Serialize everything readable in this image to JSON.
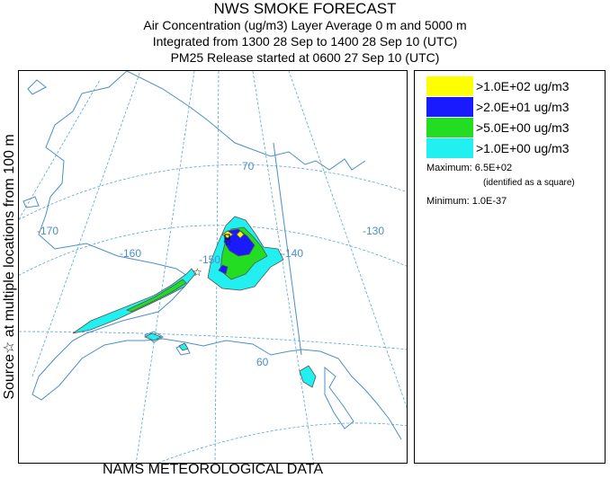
{
  "title": {
    "main": "NWS SMOKE FORECAST",
    "line2": "Air Concentration (ug/m3) Layer Average    0 m and  5000 m",
    "line3": "Integrated from 1300 28 Sep to 1400 28 Sep 10 (UTC)",
    "line4": "PM25 Release started at 0600 27 Sep 10 (UTC)"
  },
  "side_label": "Source☆ at multiple locations from 100 m",
  "footer": "NAMS METEOROLOGICAL DATA",
  "map": {
    "longitude_labels": [
      "-170",
      "-160",
      "-150",
      "-140",
      "-130"
    ],
    "latitude_labels": [
      "70",
      "60"
    ],
    "colors": {
      "graticule": "#5aa6d6",
      "coastline": "#4a8fc9",
      "contour_line": "#555555"
    }
  },
  "legend": {
    "entries": [
      {
        "label": ">1.0E+02 ug/m3",
        "color": "#ffff00"
      },
      {
        "label": ">2.0E+01 ug/m3",
        "color": "#1a1aff"
      },
      {
        "label": ">5.0E+00 ug/m3",
        "color": "#22dd22"
      },
      {
        "label": ">1.0E+00 ug/m3",
        "color": "#22f0f0"
      }
    ],
    "maximum": "Maximum: 6.5E+02",
    "maximum_note": "(identified as a square)",
    "minimum": "Minimum: 1.0E-37"
  }
}
